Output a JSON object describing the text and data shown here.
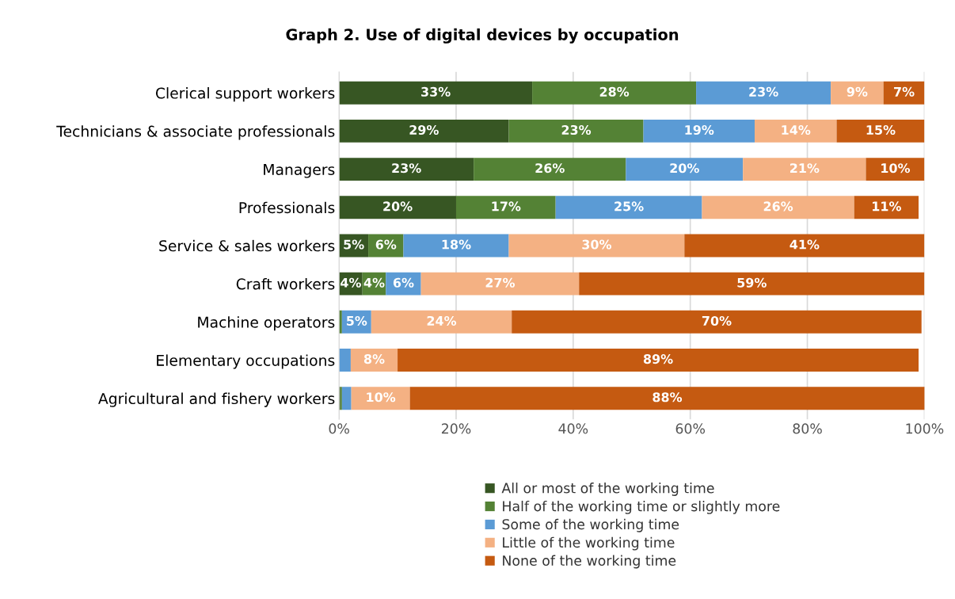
{
  "chart_data": {
    "type": "bar",
    "orientation": "horizontal",
    "stacked": true,
    "title": "Graph 2. Use of digital devices by occupation",
    "categories": [
      "Clerical support workers",
      "Technicians & associate professionals",
      "Managers",
      "Professionals",
      "Service & sales workers",
      "Craft workers",
      "Machine operators",
      "Elementary occupations",
      "Agricultural and fishery workers"
    ],
    "series": [
      {
        "name": "All or most of the working time",
        "color": "#375623",
        "values": [
          33,
          29,
          23,
          20,
          5,
          4,
          null,
          null,
          0.2
        ],
        "value_labels": [
          "33%",
          "29%",
          "23%",
          "20%",
          "5%",
          "4%",
          null,
          null,
          null
        ]
      },
      {
        "name": "Half of the working time or slightly more",
        "color": "#548235",
        "values": [
          28,
          23,
          26,
          17,
          6,
          4,
          0.5,
          null,
          0.3
        ],
        "value_labels": [
          "28%",
          "23%",
          "26%",
          "17%",
          "6%",
          "4%",
          null,
          null,
          null
        ]
      },
      {
        "name": "Some of the working time",
        "color": "#5b9bd5",
        "values": [
          23,
          19,
          20,
          25,
          18,
          6,
          5,
          2,
          1.6
        ],
        "value_labels": [
          "23%",
          "19%",
          "20%",
          "25%",
          "18%",
          "6%",
          "5%",
          null,
          null
        ]
      },
      {
        "name": "Little of the working time",
        "color": "#f4b183",
        "values": [
          9,
          14,
          21,
          26,
          30,
          27,
          24,
          8,
          10
        ],
        "value_labels": [
          "9%",
          "14%",
          "21%",
          "26%",
          "30%",
          "27%",
          "24%",
          "8%",
          "10%"
        ]
      },
      {
        "name": "None of the working time",
        "color": "#c55a11",
        "values": [
          7,
          15,
          10,
          11,
          41,
          59,
          70,
          89,
          88
        ],
        "value_labels": [
          "7%",
          "15%",
          "10%",
          "11%",
          "41%",
          "59%",
          "70%",
          "89%",
          "88%"
        ]
      }
    ],
    "xlim": [
      0,
      100
    ],
    "xticks": [
      {
        "value": 0,
        "label": "0%"
      },
      {
        "value": 20,
        "label": "20%"
      },
      {
        "value": 40,
        "label": "40%"
      },
      {
        "value": 60,
        "label": "60%"
      },
      {
        "value": 80,
        "label": "80%"
      },
      {
        "value": 100,
        "label": "100%"
      }
    ],
    "grid": "x",
    "legend": "bottom"
  }
}
